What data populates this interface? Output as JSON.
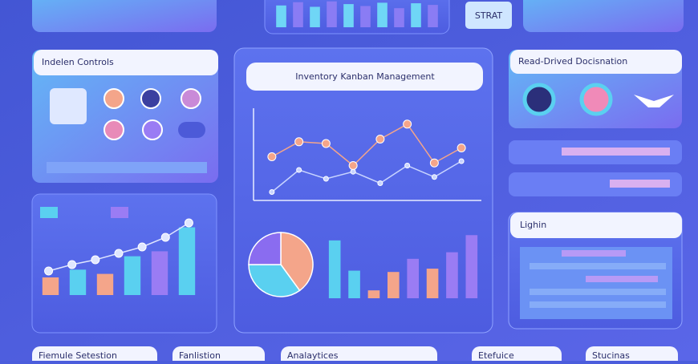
{
  "top": {
    "button": "STRAT"
  },
  "controls": {
    "title": "Indelen Controls"
  },
  "center": {
    "title": "Inventory Kanban Management"
  },
  "decisions": {
    "title": "Read-Drived Docisnation"
  },
  "list": {
    "title": "Lighin"
  },
  "bottom": [
    "Fiemule Setestion",
    "Fanlistion",
    "Analaytices",
    "Etefuice",
    "Stucinas"
  ],
  "chart_data": [
    {
      "type": "bar",
      "values": [
        25,
        36,
        30,
        55,
        62,
        96
      ],
      "colors": [
        "#f4a58a",
        "#5ad0f0",
        "#f4a58a",
        "#5ad0f0",
        "#9a7cf4",
        "#5ad0f0"
      ],
      "ylim": [
        0,
        100
      ]
    },
    {
      "type": "line",
      "series": [
        {
          "color": "#dfe6ff",
          "values": [
            20,
            28,
            34,
            42,
            50,
            62,
            80
          ]
        }
      ],
      "ylim": [
        0,
        100
      ]
    },
    {
      "type": "line",
      "series": [
        {
          "color": "#f4a58a",
          "values": [
            45,
            62,
            60,
            35,
            65,
            82,
            38,
            55
          ]
        },
        {
          "color": "#c8d4ff",
          "values": [
            5,
            30,
            20,
            28,
            15,
            35,
            22,
            40
          ]
        }
      ],
      "ylim": [
        0,
        100
      ]
    },
    {
      "type": "pie",
      "values": [
        40,
        35,
        25
      ],
      "colors": [
        "#f4a58a",
        "#5ad0f0",
        "#8a6cf0"
      ]
    },
    {
      "type": "bar",
      "values": [
        88,
        42,
        12,
        40,
        60,
        45,
        70,
        96
      ],
      "colors": [
        "#5ad0f0",
        "#5ad0f0",
        "#f4a58a",
        "#f4a58a",
        "#9a7cf4",
        "#f4a58a",
        "#9a7cf4",
        "#9a7cf4"
      ],
      "ylim": [
        0,
        100
      ]
    },
    {
      "type": "bar",
      "values": [
        80,
        92,
        75,
        95,
        85,
        78,
        90,
        70,
        88,
        82
      ],
      "colors": [
        "#6fd6f6",
        "#8a7cf4"
      ],
      "ylim": [
        0,
        100
      ]
    }
  ]
}
